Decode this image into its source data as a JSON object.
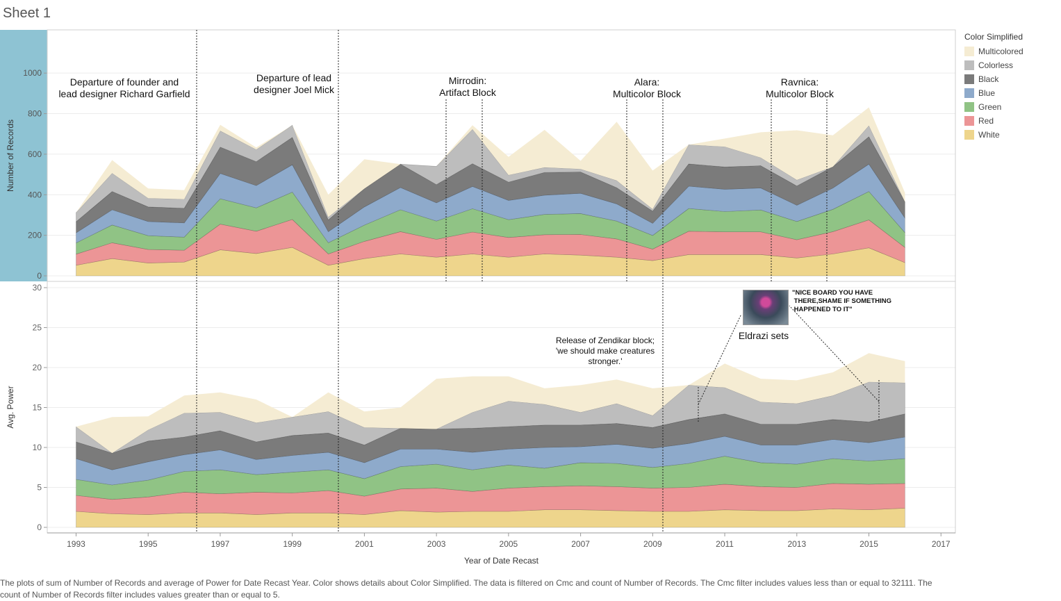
{
  "sheet_title": "Sheet 1",
  "legend": {
    "title": "Color Simplified",
    "items": [
      {
        "label": "Multicolored",
        "color": "#f5ecd3"
      },
      {
        "label": "Colorless",
        "color": "#bdbdbd"
      },
      {
        "label": "Black",
        "color": "#7b7b7b"
      },
      {
        "label": "Blue",
        "color": "#8eaacb"
      },
      {
        "label": "Green",
        "color": "#90c385"
      },
      {
        "label": "Red",
        "color": "#ec9596"
      },
      {
        "label": "White",
        "color": "#eed58c"
      }
    ]
  },
  "footer_text": "The plots of sum of Number of Records and average of Power for Date Recast Year.  Color shows details about Color Simplified. The data is filtered on Cmc and count of Number of Records. The Cmc filter includes values less than or equal to 32111. The count of Number of Records filter includes values greater than or equal to 5.",
  "chart_data": [
    {
      "type": "area",
      "stacked": true,
      "xlabel": "Year of Date Recast",
      "ylabel": "Number of Records",
      "x": [
        1993,
        1994,
        1995,
        1996,
        1997,
        1998,
        1999,
        2000,
        2001,
        2002,
        2003,
        2004,
        2005,
        2006,
        2007,
        2008,
        2009,
        2010,
        2011,
        2012,
        2013,
        2014,
        2015,
        2016
      ],
      "xlim": [
        1992.2,
        2017.4
      ],
      "ylim": [
        0,
        1100
      ],
      "yticks": [
        0,
        200,
        400,
        600,
        800,
        1000
      ],
      "xticks": [
        1993,
        1995,
        1997,
        1999,
        2001,
        2003,
        2005,
        2007,
        2009,
        2011,
        2013,
        2015,
        2017
      ],
      "grid": true,
      "series": [
        {
          "name": "White",
          "values": [
            52,
            85,
            63,
            68,
            128,
            110,
            140,
            52,
            85,
            108,
            92,
            108,
            92,
            108,
            102,
            92,
            75,
            105,
            105,
            105,
            88,
            108,
            138,
            65
          ]
        },
        {
          "name": "Red",
          "values": [
            55,
            78,
            67,
            58,
            127,
            110,
            138,
            56,
            85,
            110,
            88,
            108,
            97,
            95,
            102,
            90,
            57,
            115,
            112,
            112,
            90,
            110,
            138,
            75
          ]
        },
        {
          "name": "Green",
          "values": [
            55,
            88,
            68,
            65,
            125,
            115,
            135,
            55,
            80,
            108,
            90,
            115,
            88,
            100,
            103,
            88,
            67,
            112,
            100,
            108,
            90,
            110,
            140,
            73
          ]
        },
        {
          "name": "Blue",
          "values": [
            50,
            75,
            70,
            70,
            125,
            110,
            135,
            55,
            90,
            110,
            90,
            110,
            95,
            95,
            100,
            85,
            60,
            110,
            110,
            108,
            80,
            105,
            135,
            72
          ]
        },
        {
          "name": "Black",
          "values": [
            55,
            90,
            72,
            72,
            130,
            118,
            135,
            58,
            90,
            115,
            90,
            112,
            90,
            112,
            105,
            80,
            60,
            110,
            110,
            110,
            95,
            105,
            135,
            80
          ]
        },
        {
          "name": "Colorless",
          "values": [
            45,
            90,
            43,
            45,
            80,
            60,
            60,
            14,
            0,
            0,
            90,
            170,
            35,
            25,
            15,
            35,
            10,
            95,
            100,
            40,
            30,
            0,
            55,
            0
          ]
        },
        {
          "name": "Multicolored",
          "values": [
            0,
            65,
            48,
            45,
            30,
            10,
            0,
            110,
            145,
            0,
            0,
            20,
            90,
            185,
            40,
            290,
            190,
            0,
            40,
            125,
            245,
            155,
            90,
            45
          ]
        }
      ],
      "annotations": [
        {
          "text": [
            "Departure of founder and",
            "lead designer Richard Garfield"
          ]
        },
        {
          "text": [
            "Departure of lead",
            "designer Joel Mick"
          ]
        },
        {
          "text": [
            "Mirrodin:",
            "Artifact Block"
          ]
        },
        {
          "text": [
            "Alara:",
            "Multicolor Block"
          ]
        },
        {
          "text": [
            "Ravnica:",
            "Multicolor Block"
          ]
        }
      ]
    },
    {
      "type": "area",
      "stacked": true,
      "xlabel": "Year of Date Recast",
      "ylabel": "Avg. Power",
      "x": [
        1993,
        1994,
        1995,
        1996,
        1997,
        1998,
        1999,
        2000,
        2001,
        2002,
        2003,
        2004,
        2005,
        2006,
        2007,
        2008,
        2009,
        2010,
        2011,
        2012,
        2013,
        2014,
        2015,
        2016
      ],
      "xlim": [
        1992.2,
        2017.4
      ],
      "ylim": [
        0,
        30
      ],
      "yticks": [
        0,
        5,
        10,
        15,
        20,
        25,
        30
      ],
      "grid": true,
      "series": [
        {
          "name": "White",
          "values": [
            2.0,
            1.7,
            1.6,
            1.8,
            1.8,
            1.6,
            1.8,
            1.8,
            1.6,
            2.1,
            1.9,
            2.0,
            2.0,
            2.2,
            2.2,
            2.1,
            2.0,
            2.0,
            2.2,
            2.1,
            2.1,
            2.3,
            2.2,
            2.4
          ]
        },
        {
          "name": "Red",
          "values": [
            2.0,
            1.8,
            2.2,
            2.6,
            2.4,
            2.8,
            2.5,
            2.8,
            2.3,
            2.7,
            3.0,
            2.5,
            2.9,
            2.9,
            3.0,
            3.0,
            2.9,
            3.0,
            3.2,
            3.0,
            2.9,
            3.2,
            3.2,
            3.1
          ]
        },
        {
          "name": "Green",
          "values": [
            2.0,
            1.8,
            2.1,
            2.6,
            3.0,
            2.2,
            2.6,
            2.6,
            2.2,
            2.8,
            3.0,
            2.7,
            2.9,
            2.3,
            2.9,
            2.9,
            2.6,
            3.0,
            3.5,
            3.0,
            2.9,
            3.1,
            2.9,
            3.1
          ]
        },
        {
          "name": "Blue",
          "values": [
            2.6,
            1.9,
            2.3,
            2.1,
            2.5,
            1.9,
            2.1,
            2.2,
            2.0,
            2.2,
            1.9,
            2.2,
            2.0,
            2.6,
            2.0,
            2.4,
            2.4,
            2.5,
            2.5,
            2.2,
            2.4,
            2.4,
            2.3,
            2.7
          ]
        },
        {
          "name": "Black",
          "values": [
            2.1,
            2.1,
            2.6,
            2.2,
            2.4,
            2.2,
            2.5,
            2.4,
            2.2,
            2.6,
            2.5,
            3.0,
            2.8,
            2.8,
            2.7,
            2.6,
            2.6,
            3.0,
            2.8,
            2.6,
            2.6,
            2.5,
            2.6,
            2.9
          ]
        },
        {
          "name": "Colorless",
          "values": [
            1.9,
            0,
            1.4,
            3.0,
            2.3,
            2.4,
            2.3,
            2.7,
            2.2,
            0,
            0,
            2.0,
            3.2,
            2.6,
            1.6,
            2.5,
            1.5,
            4.3,
            3.3,
            2.8,
            2.6,
            3.0,
            5.0,
            3.9
          ]
        },
        {
          "name": "Multicolored",
          "values": [
            0,
            4.5,
            1.7,
            2.2,
            2.5,
            2.9,
            0,
            2.4,
            2.0,
            2.6,
            6.3,
            4.5,
            3.1,
            2.0,
            3.4,
            3.0,
            3.4,
            0,
            3.0,
            2.9,
            2.9,
            2.9,
            3.6,
            2.7
          ]
        }
      ],
      "annotations": [
        {
          "text": [
            "Release of Zendikar block;",
            "'we should make creatures",
            "stronger.'"
          ]
        },
        {
          "text": [
            "\"NICE BOARD YOU HAVE",
            " THERE,SHAME IF SOMETHING",
            " HAPPENED TO IT\""
          ]
        },
        {
          "text": [
            "Eldrazi sets"
          ]
        }
      ]
    }
  ]
}
